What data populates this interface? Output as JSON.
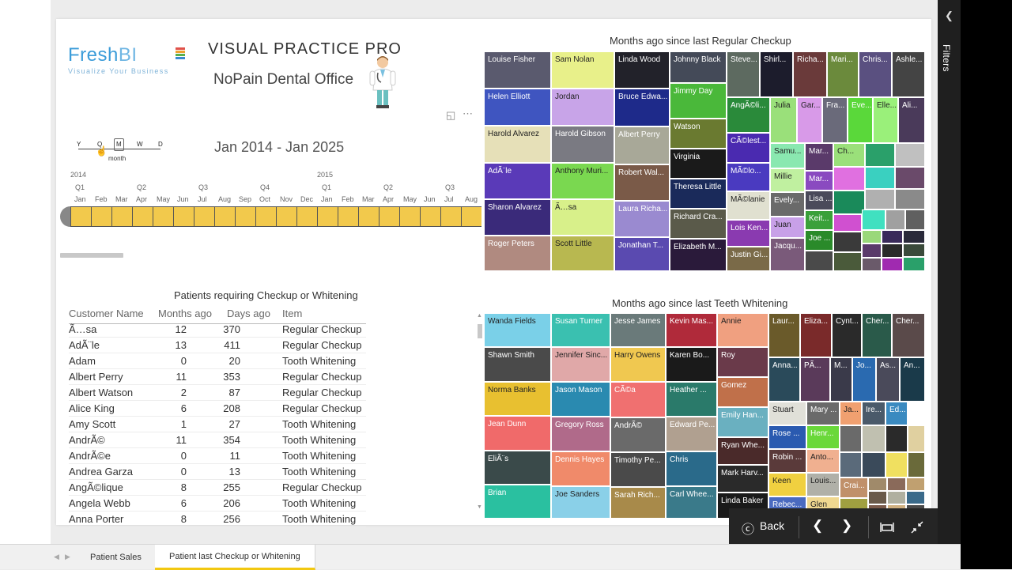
{
  "header": {
    "logo_word1": "Fresh",
    "logo_word2": "BI",
    "logo_tagline": "Visualize Your Business",
    "app_title": "VISUAL PRACTICE PRO",
    "office_name": "NoPain Dental Office",
    "focus_icon": "focus-mode-icon",
    "more_icon": "more-options-icon"
  },
  "timeline": {
    "granularity": [
      "Y",
      "Q",
      "M",
      "W",
      "D"
    ],
    "selected_label": "month",
    "range_text": "Jan 2014 - Jan 2025",
    "years": [
      {
        "label": "2014"
      },
      {
        "label": "2015"
      }
    ],
    "quarters": [
      "Q1",
      "Q2",
      "Q3",
      "Q4",
      "Q1",
      "Q2",
      "Q3"
    ],
    "months": [
      "Jan",
      "Feb",
      "Mar",
      "Apr",
      "May",
      "Jun",
      "Jul",
      "Aug",
      "Sep",
      "Oct",
      "Nov",
      "Dec",
      "Jan",
      "Feb",
      "Mar",
      "Apr",
      "May",
      "Jun",
      "Jul",
      "Aug"
    ]
  },
  "table": {
    "title": "Patients requiring Checkup or Whitening",
    "columns": [
      "Customer Name",
      "Months ago",
      "Days ago",
      "Item"
    ],
    "rows": [
      [
        "Ã…sa",
        "12",
        "370",
        "Regular Checkup"
      ],
      [
        "AdÃ¨le",
        "13",
        "411",
        "Regular Checkup"
      ],
      [
        "Adam",
        "0",
        "20",
        "Tooth Whitening"
      ],
      [
        "Albert Perry",
        "11",
        "353",
        "Regular Checkup"
      ],
      [
        "Albert Watson",
        "2",
        "87",
        "Regular Checkup"
      ],
      [
        "Alice King",
        "6",
        "208",
        "Regular Checkup"
      ],
      [
        "Amy Scott",
        "1",
        "27",
        "Tooth Whitening"
      ],
      [
        "AndrÃ©",
        "11",
        "354",
        "Tooth Whitening"
      ],
      [
        "AndrÃ©e",
        "0",
        "11",
        "Tooth Whitening"
      ],
      [
        "Andrea Garza",
        "0",
        "13",
        "Tooth Whitening"
      ],
      [
        "AngÃ©lique",
        "8",
        "255",
        "Regular Checkup"
      ],
      [
        "Angela Webb",
        "6",
        "206",
        "Tooth Whitening"
      ],
      [
        "Anna Porter",
        "8",
        "256",
        "Tooth Whitening"
      ]
    ]
  },
  "treemap_checkup": {
    "title": "Months ago since last Regular Checkup",
    "tiles": [
      {
        "label": "Louise Fisher",
        "color": "#5a5a6e"
      },
      {
        "label": "Sam Nolan",
        "color": "#e8f08a"
      },
      {
        "label": "Linda Wood",
        "color": "#22222a"
      },
      {
        "label": "Johnny Black",
        "color": "#444a58"
      },
      {
        "label": "Steve...",
        "color": "#5d6a60"
      },
      {
        "label": "Shirl...",
        "color": "#1c1c2c"
      },
      {
        "label": "Richa...",
        "color": "#6a3a3a"
      },
      {
        "label": "Mari...",
        "color": "#6b8a3c"
      },
      {
        "label": "Chris...",
        "color": "#5a5080"
      },
      {
        "label": "Ashle...",
        "color": "#444444"
      },
      {
        "label": "Helen Elliott",
        "color": "#3f55c0"
      },
      {
        "label": "Jordan",
        "color": "#c8a4e8"
      },
      {
        "label": "Bruce Edwa...",
        "color": "#1e2a8a"
      },
      {
        "label": "Jimmy Day",
        "color": "#4ab83a"
      },
      {
        "label": "Harold Alvarez",
        "color": "#e6e0b8"
      },
      {
        "label": "Harold Gibson",
        "color": "#7a7a82"
      },
      {
        "label": "Albert Perry",
        "color": "#a8a898"
      },
      {
        "label": "Watson",
        "color": "#6a7a30"
      },
      {
        "label": "AdÃ¨le",
        "color": "#5a3ab8"
      },
      {
        "label": "Anthony Muri...",
        "color": "#7ad850"
      },
      {
        "label": "Robert Wal...",
        "color": "#7a5a48"
      },
      {
        "label": "Virginia",
        "color": "#1a1a1a"
      },
      {
        "label": "Sharon Alvarez",
        "color": "#3a2a7a"
      },
      {
        "label": "Ã…sa",
        "color": "#d8f08a"
      },
      {
        "label": "Laura Richa...",
        "color": "#9a8ad0"
      },
      {
        "label": "Theresa Little",
        "color": "#1a2a5a"
      },
      {
        "label": "Richard Cra...",
        "color": "#5a5a4a"
      },
      {
        "label": "Roger Peters",
        "color": "#b08a80"
      },
      {
        "label": "Scott Little",
        "color": "#b8b850"
      },
      {
        "label": "Jonathan T...",
        "color": "#5a4ab0"
      },
      {
        "label": "Elizabeth M...",
        "color": "#2a1a3a"
      },
      {
        "label": "AngÃ©li...",
        "color": "#2a8a3a"
      },
      {
        "label": "Julia",
        "color": "#9ae07a"
      },
      {
        "label": "Gar...",
        "color": "#d89ae8"
      },
      {
        "label": "Fra...",
        "color": "#6a6a7a"
      },
      {
        "label": "Eve...",
        "color": "#5ad83a"
      },
      {
        "label": "Elle...",
        "color": "#9af07a"
      },
      {
        "label": "Ali...",
        "color": "#4a3a5a"
      },
      {
        "label": "CÃ©lest...",
        "color": "#4a2ab0"
      },
      {
        "label": "Samu...",
        "color": "#8ae8b0"
      },
      {
        "label": "MÃ©lo...",
        "color": "#4a3ac0"
      },
      {
        "label": "Millie",
        "color": "#c0f0a0"
      },
      {
        "label": "MÃ©lanie",
        "color": "#e0e0d0"
      },
      {
        "label": "Mar...",
        "color": "#5a3a6a"
      },
      {
        "label": "Evely...",
        "color": "#6a6a6a"
      },
      {
        "label": "Mar...",
        "color": "#8a4ac0"
      },
      {
        "label": "Lois Ken...",
        "color": "#8a3ab0"
      },
      {
        "label": "Lisa ...",
        "color": "#4a4a5a"
      },
      {
        "label": "Juan",
        "color": "#c8a0e8"
      },
      {
        "label": "Keit...",
        "color": "#3aa03a"
      },
      {
        "label": "Justin Gi...",
        "color": "#7a6a48"
      },
      {
        "label": "Jacqu...",
        "color": "#7a5a7a"
      },
      {
        "label": "Joe ...",
        "color": "#2a8a2a"
      },
      {
        "label": "Ch...",
        "color": "#9ae07a"
      }
    ]
  },
  "treemap_whitening": {
    "title": "Months ago since last Teeth Whitening",
    "tiles": [
      {
        "label": "Wanda Fields",
        "color": "#7ad0e8"
      },
      {
        "label": "Susan Turner",
        "color": "#3ac0b0"
      },
      {
        "label": "Jesse James",
        "color": "#6a7a7a"
      },
      {
        "label": "Kevin Mas...",
        "color": "#b02a3a"
      },
      {
        "label": "Annie",
        "color": "#f0a080"
      },
      {
        "label": "Laur...",
        "color": "#6a5a2a"
      },
      {
        "label": "Eliza...",
        "color": "#7a2a2a"
      },
      {
        "label": "Cynt...",
        "color": "#2a2a2a"
      },
      {
        "label": "Cher...",
        "color": "#2a5a4a"
      },
      {
        "label": "Cher...",
        "color": "#5a4a4a"
      },
      {
        "label": "Shawn Smith",
        "color": "#4a4a4a"
      },
      {
        "label": "Jennifer Sinc...",
        "color": "#e0a8a8"
      },
      {
        "label": "Harry Owens",
        "color": "#f0c850"
      },
      {
        "label": "Karen Bo...",
        "color": "#1a1a1a"
      },
      {
        "label": "Roy",
        "color": "#6a3a4a"
      },
      {
        "label": "Anna...",
        "color": "#2a4a5a"
      },
      {
        "label": "PÃ...",
        "color": "#5a3a5a"
      },
      {
        "label": "M...",
        "color": "#3a3a4a"
      },
      {
        "label": "Jo...",
        "color": "#2a6ab0"
      },
      {
        "label": "As...",
        "color": "#4a4a5a"
      },
      {
        "label": "An...",
        "color": "#1a3a4a"
      },
      {
        "label": "Norma Banks",
        "color": "#e8c030"
      },
      {
        "label": "Jason Mason",
        "color": "#2a8ab0"
      },
      {
        "label": "CÃ©a",
        "color": "#f07070"
      },
      {
        "label": "Heather ...",
        "color": "#2a7a6a"
      },
      {
        "label": "Gomez",
        "color": "#c0704a"
      },
      {
        "label": "Jean Dunn",
        "color": "#f06a6a"
      },
      {
        "label": "Gregory Ross",
        "color": "#b06a8a"
      },
      {
        "label": "AndrÃ©",
        "color": "#6a6a6a"
      },
      {
        "label": "Edward Pe...",
        "color": "#b0a090"
      },
      {
        "label": "Emily Han...",
        "color": "#6ab0c0"
      },
      {
        "label": "Stuart",
        "color": "#e0e0d8"
      },
      {
        "label": "Mary ...",
        "color": "#6a6a6a"
      },
      {
        "label": "Ja...",
        "color": "#f0a070"
      },
      {
        "label": "Ire...",
        "color": "#4a5a6a"
      },
      {
        "label": "Ed...",
        "color": "#3a8ac0"
      },
      {
        "label": "EliÃ¨s",
        "color": "#3a4a4a"
      },
      {
        "label": "Dennis Hayes",
        "color": "#f08a6a"
      },
      {
        "label": "Timothy Pe...",
        "color": "#4a4a4a"
      },
      {
        "label": "Chris",
        "color": "#2a6a8a"
      },
      {
        "label": "Ryan Whe...",
        "color": "#4a2a2a"
      },
      {
        "label": "Rose ...",
        "color": "#2a5ab0"
      },
      {
        "label": "Henr...",
        "color": "#6ad83a"
      },
      {
        "label": "Robin ...",
        "color": "#5a3a3a"
      },
      {
        "label": "Anto...",
        "color": "#f0b090"
      },
      {
        "label": "Brian",
        "color": "#2ac0a0"
      },
      {
        "label": "Joe Sanders",
        "color": "#8ad0e8"
      },
      {
        "label": "Sarah Rich...",
        "color": "#a88a4a"
      },
      {
        "label": "Carl Whee...",
        "color": "#3a7a8a"
      },
      {
        "label": "Mark Harv...",
        "color": "#2a2a2a"
      },
      {
        "label": "Linda Baker",
        "color": "#1a1a1a"
      },
      {
        "label": "Keen",
        "color": "#f0d040"
      },
      {
        "label": "Louis...",
        "color": "#b0b0a8"
      },
      {
        "label": "Rebec...",
        "color": "#4a6ac0"
      },
      {
        "label": "Crai...",
        "color": "#c0906a"
      },
      {
        "label": "Glen",
        "color": "#f0d890"
      }
    ]
  },
  "focus_bar": {
    "back_label": "Back",
    "back_icon": "back-circle-icon",
    "prev_icon": "chevron-left-icon",
    "next_icon": "chevron-right-icon",
    "fit_icon": "fit-to-page-icon",
    "exit_icon": "exit-focus-icon"
  },
  "filters_pane": {
    "label": "Filters",
    "chevron_icon": "chevron-left-icon"
  },
  "page_tabs": [
    "Patient Sales",
    "Patient last Checkup or Whitening"
  ]
}
